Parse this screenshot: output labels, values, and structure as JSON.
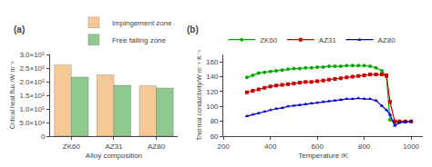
{
  "chart_data": [
    {
      "type": "bar",
      "title": "(a)",
      "x_label": "Alloy composition",
      "y_label": "Critical heat flux /W·m⁻²",
      "categories": [
        "ZK60",
        "AZ31",
        "AZ80"
      ],
      "series": [
        {
          "name": "Impingement zone",
          "color": "#F5C897",
          "values": [
            262000,
            225000,
            185000
          ]
        },
        {
          "name": "Free falling zone",
          "color": "#90C990",
          "values": [
            217000,
            187000,
            177000
          ]
        }
      ],
      "ylim": [
        0,
        300000
      ],
      "yticks": [
        0,
        {
          "value": 50000,
          "label": "5.0×10⁴"
        },
        {
          "value": 100000,
          "label": "1.0×10⁵"
        },
        {
          "value": 150000,
          "label": "1.5×10⁵"
        },
        {
          "value": 200000,
          "label": "2.0×10⁵"
        },
        {
          "value": 250000,
          "label": "2.5×10⁵"
        },
        {
          "value": 300000,
          "label": "3.0×10⁵"
        }
      ],
      "grid": false,
      "legend": "top"
    },
    {
      "type": "line",
      "title": "(b)",
      "x_label": "Temperature /K",
      "y_label": "Thermal conductivity/W·m⁻¹·K⁻¹",
      "x": [
        300,
        325,
        350,
        375,
        400,
        425,
        450,
        475,
        500,
        525,
        550,
        575,
        600,
        625,
        650,
        675,
        700,
        725,
        750,
        775,
        800,
        825,
        850,
        875,
        895,
        910,
        930,
        950,
        975,
        1000
      ],
      "series": [
        {
          "name": "ZK60",
          "color": "#00aa00",
          "marker": "circle",
          "values": [
            139,
            142,
            145,
            146,
            147,
            148,
            149,
            150,
            151,
            151,
            152,
            152,
            153,
            153,
            154,
            154,
            154,
            155,
            155,
            155,
            155,
            154,
            152,
            148,
            140,
            82,
            78,
            79,
            80,
            80
          ]
        },
        {
          "name": "AZ31",
          "color": "#cc0000",
          "marker": "square",
          "values": [
            119,
            121,
            123,
            125,
            127,
            128,
            129,
            130,
            131,
            132,
            133,
            133,
            134,
            135,
            136,
            137,
            138,
            139,
            140,
            141,
            142,
            143,
            143,
            143,
            142,
            106,
            80,
            80,
            80,
            80
          ]
        },
        {
          "name": "AZ80",
          "color": "#0000cc",
          "marker": "triangle-up",
          "values": [
            87,
            89,
            91,
            93,
            95,
            97,
            98,
            100,
            101,
            102,
            103,
            104,
            105,
            106,
            107,
            108,
            109,
            110,
            110,
            111,
            110,
            110,
            108,
            101,
            95,
            89,
            74,
            78,
            79,
            80
          ]
        }
      ],
      "xlim": [
        200,
        1050
      ],
      "xticks": [
        200,
        400,
        600,
        800,
        1000
      ],
      "ylim": [
        60,
        170
      ],
      "yticks": [
        60,
        80,
        100,
        120,
        140,
        160
      ],
      "grid": false,
      "legend": "top"
    }
  ]
}
